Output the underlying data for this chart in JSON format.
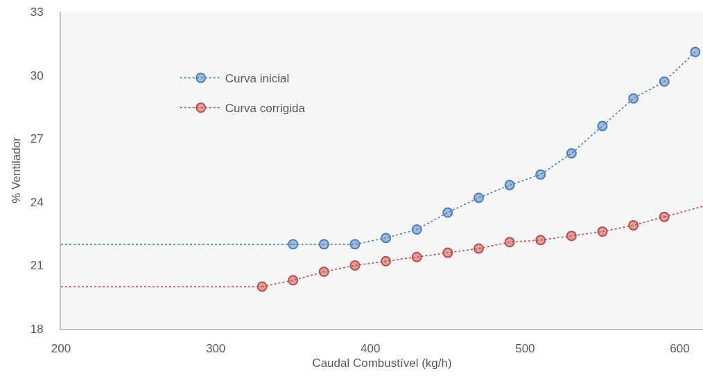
{
  "chart_data": {
    "type": "line",
    "xlabel": "Caudal Combustível (kg/h)",
    "ylabel": "% Ventilador",
    "xlim": [
      200,
      615
    ],
    "xticks": [
      200,
      300,
      400,
      500,
      600
    ],
    "ylim": [
      18,
      33
    ],
    "yticks": [
      18,
      21,
      24,
      27,
      30,
      33
    ],
    "grid": false,
    "legend": "top left",
    "marker": "circle",
    "line_style": "dotted",
    "series": [
      {
        "name": "Curva inicial",
        "color": "#4a7ebb",
        "x": [
          350,
          370,
          390,
          410,
          430,
          450,
          470,
          490,
          510,
          530,
          550,
          570,
          590,
          610
        ],
        "values": [
          22,
          22,
          22,
          22.3,
          22.7,
          23.5,
          24.2,
          24.8,
          25.3,
          26.3,
          27.6,
          28.9,
          29.7,
          31.1
        ]
      },
      {
        "name": "Curva corrigida",
        "color": "#be4b48",
        "x": [
          330,
          350,
          370,
          390,
          410,
          430,
          450,
          470,
          490,
          510,
          530,
          550,
          570,
          590
        ],
        "values": [
          20,
          20.3,
          20.7,
          21,
          21.2,
          21.4,
          21.6,
          21.8,
          22.1,
          22.2,
          22.4,
          22.6,
          22.9,
          23.3
        ]
      },
      {
        "color": "#4a7ebb",
        "x": [
          200,
          350
        ],
        "values": [
          22,
          22
        ],
        "marker": "none"
      },
      {
        "color": "#be4b48",
        "x": [
          200,
          330
        ],
        "values": [
          20,
          20
        ],
        "marker": "none"
      },
      {
        "color": "#be4b48",
        "x": [
          590,
          615
        ],
        "values": [
          23.3,
          23.8
        ],
        "marker": "none"
      }
    ]
  }
}
